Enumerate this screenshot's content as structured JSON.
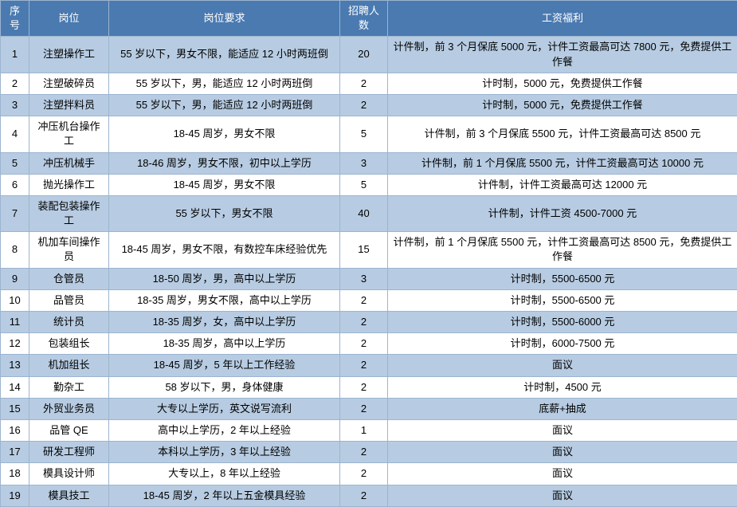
{
  "table": {
    "header_bg": "#4a7ab0",
    "header_fg": "#ffffff",
    "row_alt_bg": "#b7cce2",
    "row_bg": "#ffffff",
    "border_color": "#9cb4cf",
    "columns": [
      "序号",
      "岗位",
      "岗位要求",
      "招聘人数",
      "工资福利"
    ],
    "rows": [
      {
        "no": "1",
        "pos": "注塑操作工",
        "req": "55 岁以下，男女不限，能适应 12 小时两班倒",
        "cnt": "20",
        "pay": "计件制，前 3 个月保底 5000 元，计件工资最高可达 7800 元，免费提供工作餐"
      },
      {
        "no": "2",
        "pos": "注塑破碎员",
        "req": "55 岁以下，男，能适应 12 小时两班倒",
        "cnt": "2",
        "pay": "计时制，5000 元，免费提供工作餐"
      },
      {
        "no": "3",
        "pos": "注塑拌料员",
        "req": "55 岁以下，男，能适应 12 小时两班倒",
        "cnt": "2",
        "pay": "计时制，5000 元，免费提供工作餐"
      },
      {
        "no": "4",
        "pos": "冲压机台操作工",
        "req": "18-45 周岁，男女不限",
        "cnt": "5",
        "pay": "计件制，前 3 个月保底 5500 元，计件工资最高可达 8500 元"
      },
      {
        "no": "5",
        "pos": "冲压机械手",
        "req": "18-46 周岁，男女不限，初中以上学历",
        "cnt": "3",
        "pay": "计件制，前 1 个月保底 5500 元，计件工资最高可达 10000 元"
      },
      {
        "no": "6",
        "pos": "抛光操作工",
        "req": "18-45 周岁，男女不限",
        "cnt": "5",
        "pay": "计件制，计件工资最高可达 12000 元"
      },
      {
        "no": "7",
        "pos": "装配包装操作工",
        "req": "55 岁以下，男女不限",
        "cnt": "40",
        "pay": "计件制，计件工资 4500-7000 元"
      },
      {
        "no": "8",
        "pos": "机加车间操作员",
        "req": "18-45 周岁，男女不限，有数控车床经验优先",
        "cnt": "15",
        "pay": "计件制，前 1 个月保底 5500 元，计件工资最高可达 8500 元，免费提供工作餐"
      },
      {
        "no": "9",
        "pos": "仓管员",
        "req": "18-50 周岁，男，高中以上学历",
        "cnt": "3",
        "pay": "计时制，5500-6500 元"
      },
      {
        "no": "10",
        "pos": "品管员",
        "req": "18-35 周岁，男女不限，高中以上学历",
        "cnt": "2",
        "pay": "计时制，5500-6500 元"
      },
      {
        "no": "11",
        "pos": "统计员",
        "req": "18-35 周岁，女，高中以上学历",
        "cnt": "2",
        "pay": "计时制，5500-6000 元"
      },
      {
        "no": "12",
        "pos": "包装组长",
        "req": "18-35 周岁，高中以上学历",
        "cnt": "2",
        "pay": "计时制，6000-7500 元"
      },
      {
        "no": "13",
        "pos": "机加组长",
        "req": "18-45 周岁，5 年以上工作经验",
        "cnt": "2",
        "pay": "面议"
      },
      {
        "no": "14",
        "pos": "勤杂工",
        "req": "58 岁以下，男，身体健康",
        "cnt": "2",
        "pay": "计时制，4500 元"
      },
      {
        "no": "15",
        "pos": "外贸业务员",
        "req": "大专以上学历，英文说写流利",
        "cnt": "2",
        "pay": "底薪+抽成"
      },
      {
        "no": "16",
        "pos": "品管 QE",
        "req": "高中以上学历，2 年以上经验",
        "cnt": "1",
        "pay": "面议"
      },
      {
        "no": "17",
        "pos": "研发工程师",
        "req": "本科以上学历，3 年以上经验",
        "cnt": "2",
        "pay": "面议"
      },
      {
        "no": "18",
        "pos": "模具设计师",
        "req": "大专以上，8 年以上经验",
        "cnt": "2",
        "pay": "面议"
      },
      {
        "no": "19",
        "pos": "模具技工",
        "req": "18-45 周岁，2 年以上五金模具经验",
        "cnt": "2",
        "pay": "面议"
      }
    ]
  }
}
